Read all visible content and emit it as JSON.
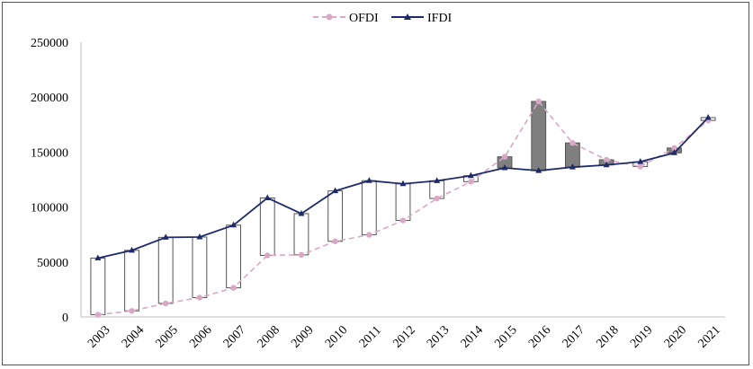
{
  "chart_data": {
    "type": "line",
    "title": "",
    "xlabel": "",
    "ylabel": "",
    "x": [
      "2003",
      "2004",
      "2005",
      "2006",
      "2007",
      "2008",
      "2009",
      "2010",
      "2011",
      "2012",
      "2013",
      "2014",
      "2015",
      "2016",
      "2017",
      "2018",
      "2019",
      "2020",
      "2021"
    ],
    "series": [
      {
        "name": "OFDI",
        "color": "#d9a8c4",
        "style": "dashed",
        "marker": "circle",
        "values": [
          2000,
          5500,
          12300,
          17600,
          26500,
          56000,
          56500,
          68800,
          74700,
          87800,
          107800,
          123100,
          145700,
          196100,
          158300,
          143000,
          136900,
          153700,
          178800
        ]
      },
      {
        "name": "IFDI",
        "color": "#1f2a6b",
        "style": "solid",
        "marker": "triangle",
        "values": [
          53500,
          60600,
          72400,
          72700,
          83500,
          108300,
          94000,
          114700,
          124000,
          121100,
          123900,
          128500,
          135600,
          133100,
          136300,
          138300,
          141200,
          149300,
          181400
        ]
      }
    ],
    "ylim": [
      0,
      250000
    ],
    "yticks": [
      0,
      50000,
      100000,
      150000,
      200000,
      250000
    ],
    "bars": {
      "type": "up-down",
      "up_color": "#ffffff",
      "down_color": "#7f7f7f",
      "edge_color": "#555555"
    },
    "legend": {
      "position": "top-center"
    },
    "grid": false
  }
}
